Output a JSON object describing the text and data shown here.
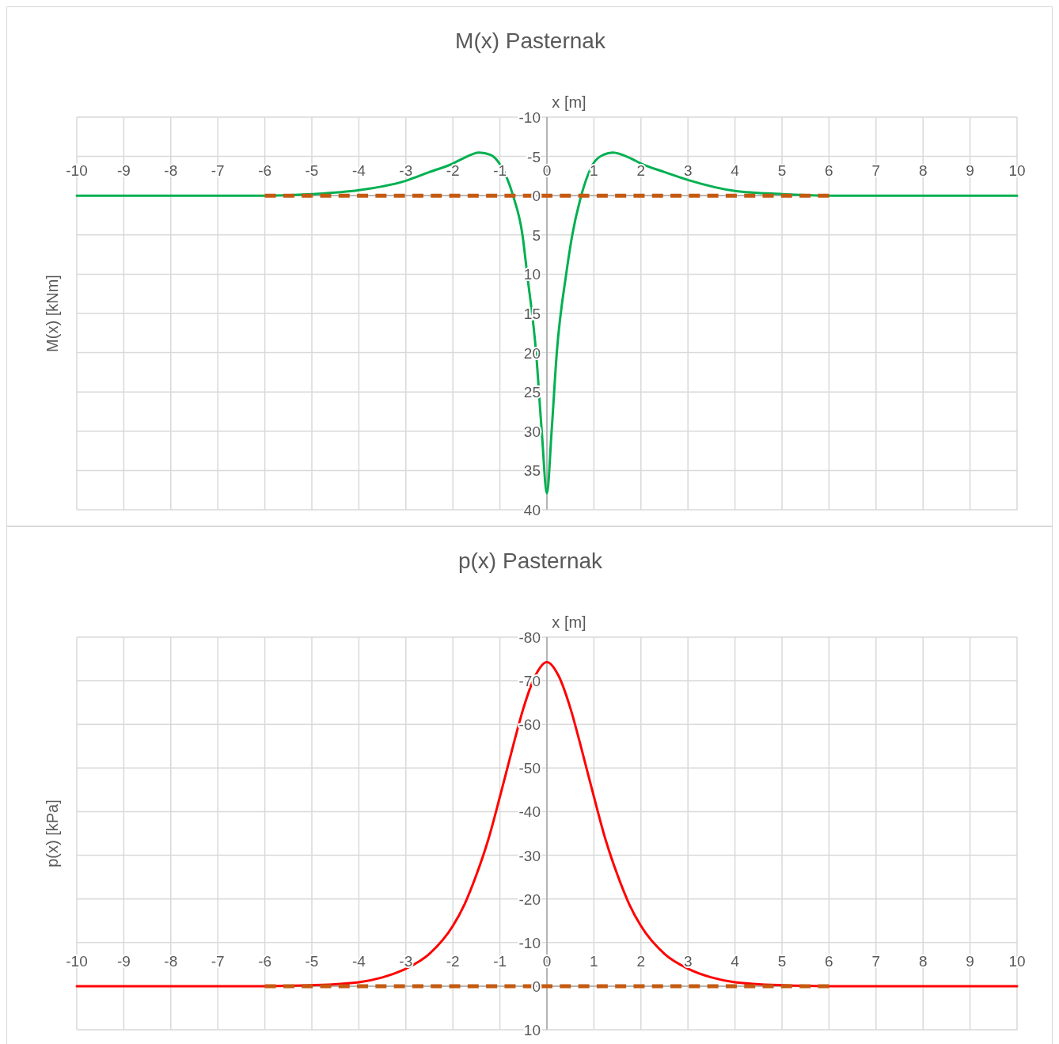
{
  "chart_data": [
    {
      "type": "line",
      "title": "M(x) Pasternak",
      "xlabel": "x [m]",
      "ylabel": "M(x)  [kNm]",
      "xlim": [
        -10,
        10
      ],
      "xticks": [
        -10,
        -9,
        -8,
        -7,
        -6,
        -5,
        -4,
        -3,
        -2,
        -1,
        0,
        1,
        2,
        3,
        4,
        5,
        6,
        7,
        8,
        9,
        10
      ],
      "ylim": [
        40,
        -10
      ],
      "yticks": [
        -10,
        -5,
        0,
        5,
        10,
        15,
        20,
        25,
        30,
        35,
        40
      ],
      "grid": true,
      "series": [
        {
          "color": "#00b050",
          "x": [
            -10,
            -7,
            -6,
            -5,
            -4,
            -3,
            -2.5,
            -2,
            -1.8,
            -1.44,
            -1.2,
            -1,
            -0.72,
            -0.52,
            -0.42,
            -0.23,
            -0.11,
            0,
            0.1,
            0.21,
            0.41,
            0.54,
            0.73,
            1,
            1.2,
            1.4,
            1.8,
            2,
            2.5,
            3,
            4,
            5,
            6,
            7,
            10
          ],
          "values": [
            0,
            0,
            0,
            -0.2,
            -0.7,
            -1.9,
            -3,
            -4.1,
            -4.7,
            -5.5,
            -5.2,
            -4,
            0,
            5,
            10,
            20,
            30,
            37.9,
            30,
            20,
            10,
            5,
            0,
            -4.2,
            -5.2,
            -5.5,
            -4.7,
            -4.1,
            -3,
            -2,
            -0.6,
            -0.2,
            0,
            0,
            0
          ],
          "line_style": "solid"
        },
        {
          "color": "#c55a11",
          "x": [
            -6,
            6
          ],
          "values": [
            0,
            0
          ],
          "line_style": "dashed"
        }
      ]
    },
    {
      "type": "line",
      "title": "p(x)  Pasternak",
      "xlabel": "x [m]",
      "ylabel": "p(x)  [kPa]",
      "xlim": [
        -10,
        10
      ],
      "xticks": [
        -10,
        -9,
        -8,
        -7,
        -6,
        -5,
        -4,
        -3,
        -2,
        -1,
        0,
        1,
        2,
        3,
        4,
        5,
        6,
        7,
        8,
        9,
        10
      ],
      "ylim": [
        10,
        -80
      ],
      "yticks": [
        -80,
        -70,
        -60,
        -50,
        -40,
        -30,
        -20,
        -10,
        0,
        10
      ],
      "grid": true,
      "series": [
        {
          "color": "#ff0000",
          "x": [
            -10,
            -6,
            -5,
            -4,
            -3.5,
            -3,
            -2.5,
            -2,
            -1.75,
            -1.5,
            -1.25,
            -1,
            -0.75,
            -0.5,
            -0.25,
            0,
            0.25,
            0.5,
            0.75,
            1,
            1.25,
            1.5,
            1.75,
            2,
            2.5,
            3,
            3.5,
            4,
            5,
            6,
            10
          ],
          "values": [
            0,
            0,
            -0.2,
            -0.9,
            -2,
            -4,
            -7.4,
            -13.8,
            -18.8,
            -25.5,
            -33.5,
            -43.4,
            -53.8,
            -63.7,
            -71.1,
            -74.3,
            -71.1,
            -63.7,
            -53.8,
            -43.4,
            -33.5,
            -25.5,
            -18.8,
            -13.8,
            -7.4,
            -4,
            -2,
            -0.9,
            -0.2,
            0,
            0
          ],
          "line_style": "solid"
        },
        {
          "color": "#c55a11",
          "x": [
            -6,
            6
          ],
          "values": [
            0,
            0
          ],
          "line_style": "dashed"
        }
      ]
    }
  ]
}
